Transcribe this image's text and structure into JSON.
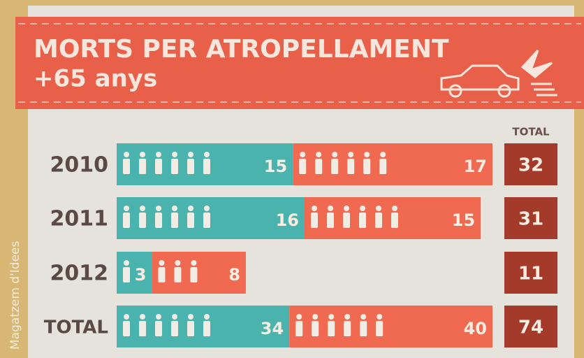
{
  "chart_data": {
    "type": "bar",
    "stacked": true,
    "orientation": "horizontal",
    "title": "MORTS PER ATROPELLAMENT",
    "subtitle": "+65 anys",
    "categories": [
      "2010",
      "2011",
      "2012",
      "TOTAL"
    ],
    "series": [
      {
        "color": "#4bb3ae",
        "values": [
          15,
          16,
          3,
          34
        ]
      },
      {
        "color": "#ef6a50",
        "values": [
          17,
          15,
          8,
          40
        ]
      }
    ],
    "totals_header": "TOTAL",
    "totals": [
      32,
      31,
      11,
      74
    ],
    "totals_color": "#a43a2a",
    "credit": "Magatzem d'Idees"
  }
}
